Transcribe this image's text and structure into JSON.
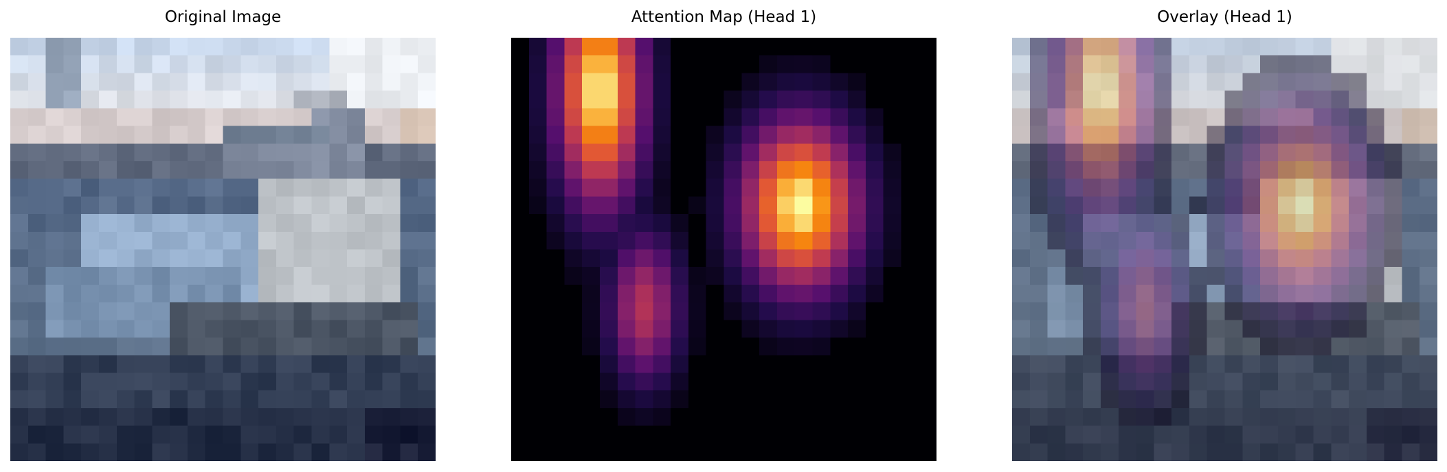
{
  "chart_data": [
    {
      "type": "heatmap",
      "title": "Original Image",
      "grid": false,
      "axes": "off",
      "content": "pixelated photo of a boat in a harbor",
      "grid_size": [
        24,
        24
      ]
    },
    {
      "type": "heatmap",
      "title": "Attention Map (Head 1)",
      "grid": false,
      "axes": "off",
      "colormap": "inferno",
      "grid_size": [
        24,
        24
      ],
      "peaks": [
        {
          "row": 3,
          "col": 4,
          "intensity": 1.0
        },
        {
          "row": 9,
          "col": 16,
          "intensity": 1.0
        },
        {
          "row": 15,
          "col": 7,
          "intensity": 0.55
        }
      ]
    },
    {
      "type": "heatmap",
      "title": "Overlay (Head 1)",
      "grid": false,
      "axes": "off",
      "colormap": "inferno",
      "grid_size": [
        24,
        24
      ]
    }
  ]
}
